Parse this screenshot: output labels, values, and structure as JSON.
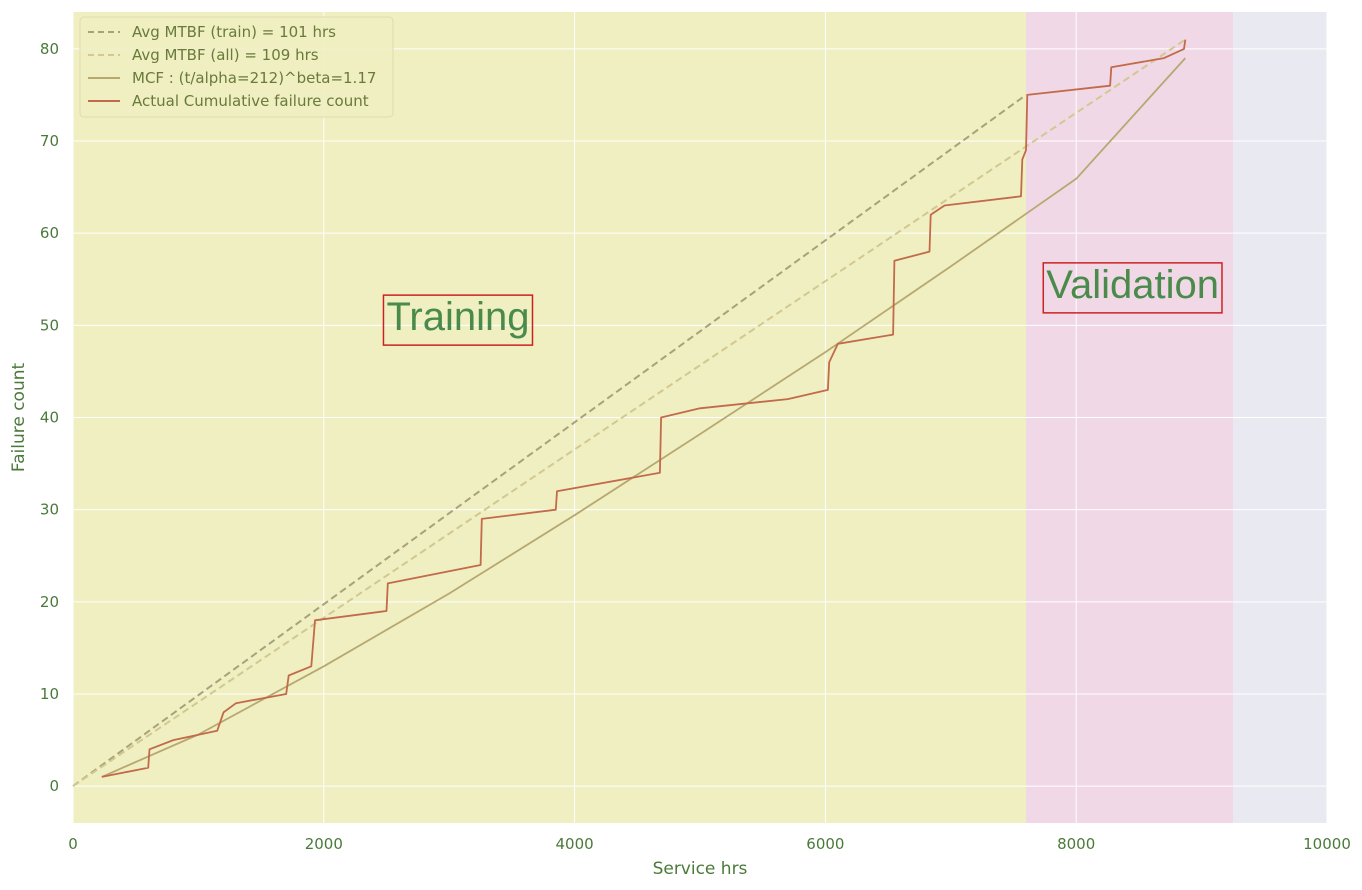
{
  "chart_data": {
    "type": "line",
    "xlabel": "Service hrs",
    "ylabel": "Failure count",
    "xlim": [
      0,
      10000
    ],
    "ylim": [
      -4,
      84
    ],
    "x_ticks": [
      0,
      2000,
      4000,
      6000,
      8000,
      10000
    ],
    "y_ticks": [
      0,
      10,
      20,
      30,
      40,
      50,
      60,
      70,
      80
    ],
    "grid": true,
    "legend_position": "top-left",
    "colors": {
      "plot_background": "#e9e9f2",
      "training_region": "#efefc2",
      "validation_region": "#f0d8e6",
      "grid": "#ffffff",
      "text": "#4a7a3a",
      "annotation_box": "#cc2222"
    },
    "regions": [
      {
        "label": "Training",
        "x_start": 0,
        "x_end": 7600,
        "color": "#efefc2"
      },
      {
        "label": "Validation",
        "x_start": 7600,
        "x_end": 9250,
        "color": "#f0d8e6"
      }
    ],
    "region_labels": [
      {
        "text": "Training",
        "x": 3070,
        "y": 51
      },
      {
        "text": "Validation",
        "x": 8450,
        "y": 54.5
      }
    ],
    "series": [
      {
        "name": "Avg MTBF (train) = 101 hrs",
        "style": "dashed",
        "color": "#a8a278",
        "x": [
          0,
          7600
        ],
        "y": [
          0,
          75
        ]
      },
      {
        "name": "Avg MTBF (all) = 109 hrs",
        "style": "dashed",
        "color": "#d2c890",
        "x": [
          0,
          8870
        ],
        "y": [
          0,
          81
        ]
      },
      {
        "name": "MCF : (t/alpha=212)^beta=1.17",
        "style": "solid",
        "color": "#b8a870",
        "x": [
          230,
          1000,
          2000,
          3000,
          4000,
          5000,
          6000,
          7000,
          7600,
          8000,
          8870
        ],
        "y": [
          1.0,
          5.6,
          13.0,
          20.9,
          29.4,
          38.2,
          47.1,
          56.4,
          62.1,
          65.9,
          79.0
        ]
      },
      {
        "name": "Actual Cumulative failure count",
        "style": "solid",
        "color": "#c26a4a",
        "x": [
          230,
          600,
          610,
          800,
          1150,
          1200,
          1300,
          1700,
          1720,
          1900,
          1930,
          2500,
          2510,
          3250,
          3260,
          3850,
          3860,
          4680,
          4690,
          5000,
          5700,
          6020,
          6030,
          6100,
          6540,
          6550,
          6830,
          6840,
          6950,
          7560,
          7570,
          7600,
          7610,
          8270,
          8280,
          8700,
          8860,
          8870
        ],
        "y": [
          1,
          2,
          4,
          5,
          6,
          8,
          9,
          10,
          12,
          13,
          18,
          19,
          22,
          24,
          29,
          30,
          32,
          34,
          40,
          41,
          42,
          43,
          46,
          48,
          49,
          57,
          58,
          62,
          63,
          64,
          68,
          69,
          75,
          76,
          78,
          79,
          80,
          81
        ]
      }
    ]
  }
}
